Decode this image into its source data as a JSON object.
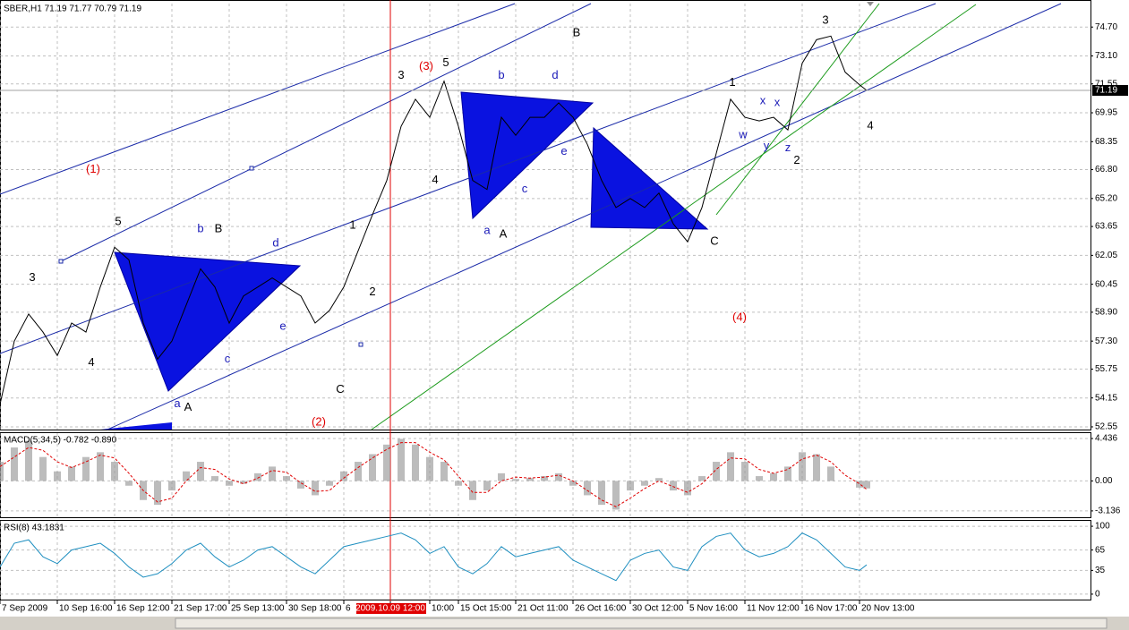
{
  "chart_data": [
    {
      "type": "line",
      "title": "SBER,H1  71.19 71.77 70.79 71.19",
      "color": "#000000",
      "x": [
        0,
        4,
        8,
        12,
        16,
        20,
        24,
        28,
        32,
        36,
        40,
        44,
        48,
        52,
        56,
        60,
        64,
        68,
        72,
        76,
        80,
        84,
        88,
        92,
        96,
        100,
        104,
        108,
        112,
        116,
        120,
        124,
        128,
        132,
        136,
        140,
        144,
        148,
        152,
        156,
        160,
        164,
        168,
        172,
        176,
        180,
        184,
        188,
        192,
        196,
        200,
        204,
        208,
        212,
        216,
        220,
        224,
        228,
        232,
        236,
        240,
        242
      ],
      "values": [
        53.8,
        57.3,
        58.8,
        57.8,
        56.5,
        58.3,
        57.8,
        60.3,
        62.5,
        61.8,
        58.3,
        56.3,
        57.3,
        59.3,
        61.3,
        60.3,
        58.3,
        59.8,
        60.3,
        60.8,
        60.3,
        59.8,
        58.3,
        59.0,
        60.3,
        62.3,
        64.3,
        66.2,
        69.2,
        70.7,
        69.7,
        71.7,
        69.2,
        66.2,
        65.7,
        69.7,
        68.7,
        69.7,
        69.7,
        70.5,
        69.7,
        68.2,
        66.2,
        64.7,
        65.2,
        64.7,
        65.5,
        63.8,
        62.8,
        64.7,
        67.7,
        70.7,
        69.7,
        69.5,
        69.7,
        69.0,
        72.7,
        74.0,
        74.2,
        72.2,
        71.5,
        71.19
      ],
      "current_price": 71.19,
      "xlim": [
        0,
        304.5
      ],
      "xticks": [
        {
          "value": 0,
          "label": "7 Sep 2009"
        },
        {
          "value": 16,
          "label": "10 Sep 16:00"
        },
        {
          "value": 32,
          "label": "16 Sep 12:00"
        },
        {
          "value": 48,
          "label": "21 Sep 17:00"
        },
        {
          "value": 64,
          "label": "25 Sep 13:00"
        },
        {
          "value": 80,
          "label": "30 Sep 18:00"
        },
        {
          "value": 96,
          "label": "6"
        },
        {
          "value": 109,
          "label": "2009.10.09 12:00"
        },
        {
          "value": 120,
          "label": "10:00"
        },
        {
          "value": 128,
          "label": "15 Oct 15:00"
        },
        {
          "value": 144,
          "label": "21 Oct 11:00"
        },
        {
          "value": 160,
          "label": "26 Oct 16:00"
        },
        {
          "value": 176,
          "label": "30 Oct 12:00"
        },
        {
          "value": 192,
          "label": "5 Nov 16:00"
        },
        {
          "value": 208,
          "label": "11 Nov 12:00"
        },
        {
          "value": 224,
          "label": "16 Nov 17:00"
        },
        {
          "value": 240,
          "label": "20 Nov 13:00"
        }
      ],
      "highlight_xtick": 7,
      "ylim": [
        52.4,
        76.0
      ],
      "yticks": [
        {
          "value": 74.7,
          "label": "74.70"
        },
        {
          "value": 73.1,
          "label": "73.10"
        },
        {
          "value": 71.55,
          "label": "71.55"
        },
        {
          "value": 69.95,
          "label": "69.95"
        },
        {
          "value": 68.35,
          "label": "68.35"
        },
        {
          "value": 66.8,
          "label": "66.80"
        },
        {
          "value": 65.2,
          "label": "65.20"
        },
        63.65,
        62.05,
        60.45,
        {
          "value": 58.9,
          "label": "58.90"
        },
        {
          "value": 57.3,
          "label": "57.30"
        },
        55.75,
        54.15,
        52.55
      ],
      "grid": true,
      "annotations": [
        {
          "text": "(1)",
          "x": 26,
          "y": 66.8,
          "color": "#e00000"
        },
        {
          "text": "3",
          "x": 9,
          "y": 60.8,
          "color": "#000000"
        },
        {
          "text": "4",
          "x": 25.5,
          "y": 56.1,
          "color": "#000000"
        },
        {
          "text": "5",
          "x": 33,
          "y": 63.9,
          "color": "#000000"
        },
        {
          "text": "b",
          "x": 56,
          "y": 63.5,
          "color": "#1a1ab8"
        },
        {
          "text": "B",
          "x": 61,
          "y": 63.5,
          "color": "#000000"
        },
        {
          "text": "d",
          "x": 77,
          "y": 62.7,
          "color": "#1a1ab8"
        },
        {
          "text": "e",
          "x": 79,
          "y": 58.1,
          "color": "#1a1ab8"
        },
        {
          "text": "c",
          "x": 63.5,
          "y": 56.3,
          "color": "#1a1ab8"
        },
        {
          "text": "a",
          "x": 49.5,
          "y": 53.8,
          "color": "#1a1ab8"
        },
        {
          "text": "A",
          "x": 52.5,
          "y": 53.6,
          "color": "#000000"
        },
        {
          "text": "C",
          "x": 95,
          "y": 54.6,
          "color": "#000000"
        },
        {
          "text": "(2)",
          "x": 89,
          "y": 52.8,
          "color": "#e00000"
        },
        {
          "text": "2",
          "x": 104,
          "y": 60.0,
          "color": "#000000"
        },
        {
          "text": "1",
          "x": 98.5,
          "y": 63.7,
          "color": "#000000"
        },
        {
          "text": "4",
          "x": 121.5,
          "y": 66.2,
          "color": "#000000"
        },
        {
          "text": "3",
          "x": 112,
          "y": 72.0,
          "color": "#000000"
        },
        {
          "text": "(3)",
          "x": 119,
          "y": 72.5,
          "color": "#e00000"
        },
        {
          "text": "5",
          "x": 124.5,
          "y": 72.7,
          "color": "#000000"
        },
        {
          "text": "b",
          "x": 140,
          "y": 72.0,
          "color": "#1a1ab8"
        },
        {
          "text": "d",
          "x": 155,
          "y": 72.0,
          "color": "#1a1ab8"
        },
        {
          "text": "B",
          "x": 161,
          "y": 74.35,
          "color": "#000000"
        },
        {
          "text": "e",
          "x": 157.5,
          "y": 67.8,
          "color": "#1a1ab8"
        },
        {
          "text": "c",
          "x": 146.5,
          "y": 65.7,
          "color": "#1a1ab8"
        },
        {
          "text": "a",
          "x": 136,
          "y": 63.4,
          "color": "#1a1ab8"
        },
        {
          "text": "A",
          "x": 140.5,
          "y": 63.2,
          "color": "#000000"
        },
        {
          "text": "C",
          "x": 199.5,
          "y": 62.8,
          "color": "#000000"
        },
        {
          "text": "(4)",
          "x": 206.5,
          "y": 58.6,
          "color": "#e00000"
        },
        {
          "text": "1",
          "x": 204.5,
          "y": 71.6,
          "color": "#000000"
        },
        {
          "text": "w",
          "x": 207.5,
          "y": 68.7,
          "color": "#1a1ab8"
        },
        {
          "text": "x",
          "x": 213,
          "y": 70.6,
          "color": "#1a1ab8"
        },
        {
          "text": "x",
          "x": 217,
          "y": 70.5,
          "color": "#1a1ab8"
        },
        {
          "text": "y",
          "x": 214,
          "y": 68.1,
          "color": "#1a1ab8"
        },
        {
          "text": "z",
          "x": 220,
          "y": 68.0,
          "color": "#1a1ab8"
        },
        {
          "text": "2",
          "x": 222.5,
          "y": 67.3,
          "color": "#000000"
        },
        {
          "text": "3",
          "x": 230.5,
          "y": 75.05,
          "color": "#000000"
        },
        {
          "text": "4",
          "x": 243,
          "y": 69.2,
          "color": "#000000"
        }
      ]
    },
    {
      "type": "macd",
      "title": "MACD(5,34,5) -0.782 -0.890",
      "x": [
        0,
        4,
        8,
        12,
        16,
        20,
        24,
        28,
        32,
        36,
        40,
        44,
        48,
        52,
        56,
        60,
        64,
        68,
        72,
        76,
        80,
        84,
        88,
        92,
        96,
        100,
        104,
        108,
        112,
        116,
        120,
        124,
        128,
        132,
        136,
        140,
        144,
        148,
        152,
        156,
        160,
        164,
        168,
        172,
        176,
        180,
        184,
        188,
        192,
        196,
        200,
        204,
        208,
        212,
        216,
        220,
        224,
        228,
        232,
        236,
        240,
        242
      ],
      "values": [
        2.0,
        3.5,
        4.2,
        2.5,
        1.0,
        1.5,
        2.5,
        3.0,
        2.0,
        -0.5,
        -2.0,
        -2.5,
        -1.0,
        1.0,
        2.0,
        0.5,
        -0.5,
        -0.3,
        0.8,
        1.5,
        0.5,
        -0.8,
        -1.5,
        -0.5,
        1.0,
        2.0,
        2.8,
        3.8,
        4.4,
        3.8,
        2.5,
        2.0,
        -0.5,
        -2.0,
        -1.0,
        0.8,
        0.2,
        0.3,
        0.5,
        0.8,
        -0.5,
        -1.5,
        -2.5,
        -3.0,
        -1.0,
        -0.5,
        0.3,
        -1.0,
        -1.5,
        0.5,
        2.0,
        3.0,
        2.0,
        0.5,
        0.8,
        1.5,
        3.0,
        2.8,
        1.5,
        0.0,
        -0.7,
        -0.782
      ],
      "signal": [
        1.5,
        2.5,
        3.5,
        3.2,
        2.0,
        1.4,
        2.0,
        2.7,
        2.4,
        0.8,
        -1.0,
        -2.2,
        -1.8,
        0.0,
        1.4,
        1.2,
        0.2,
        -0.3,
        0.3,
        1.1,
        0.9,
        -0.2,
        -1.1,
        -1.0,
        0.3,
        1.4,
        2.4,
        3.3,
        4.0,
        4.0,
        3.0,
        2.2,
        0.5,
        -1.2,
        -1.2,
        0.0,
        0.4,
        0.3,
        0.4,
        0.6,
        0.0,
        -1.0,
        -2.0,
        -2.7,
        -1.8,
        -0.8,
        0.0,
        -0.6,
        -1.2,
        -0.3,
        1.2,
        2.4,
        2.3,
        1.2,
        0.8,
        1.2,
        2.3,
        2.7,
        2.0,
        0.6,
        -0.3,
        -0.89
      ],
      "color": "#a0a0a0",
      "signal_color": "#e00000",
      "ylim": [
        -3.8,
        5.0
      ],
      "yticks": [
        4.436,
        {
          "value": 0,
          "label": "0.00"
        },
        -3.136
      ],
      "grid": true
    },
    {
      "type": "line",
      "title": "RSI(8) 43.1831",
      "color": "#1f8fc0",
      "x": [
        0,
        4,
        8,
        12,
        16,
        20,
        24,
        28,
        32,
        36,
        40,
        44,
        48,
        52,
        56,
        60,
        64,
        68,
        72,
        76,
        80,
        84,
        88,
        92,
        96,
        100,
        104,
        108,
        112,
        116,
        120,
        124,
        128,
        132,
        136,
        140,
        144,
        148,
        152,
        156,
        160,
        164,
        168,
        172,
        176,
        180,
        184,
        188,
        192,
        196,
        200,
        204,
        208,
        212,
        216,
        220,
        224,
        228,
        232,
        236,
        240,
        242
      ],
      "values": [
        40,
        75,
        80,
        55,
        45,
        65,
        70,
        75,
        60,
        40,
        25,
        30,
        45,
        65,
        75,
        55,
        40,
        50,
        65,
        70,
        55,
        40,
        30,
        50,
        70,
        75,
        80,
        85,
        90,
        80,
        60,
        70,
        40,
        30,
        45,
        70,
        55,
        60,
        65,
        70,
        50,
        40,
        30,
        20,
        50,
        60,
        65,
        40,
        35,
        70,
        85,
        90,
        65,
        55,
        60,
        70,
        90,
        80,
        60,
        40,
        35,
        43.1831
      ],
      "ylim": [
        -8,
        108
      ],
      "yticks": [
        100,
        65,
        35,
        0
      ],
      "grid": true
    }
  ]
}
